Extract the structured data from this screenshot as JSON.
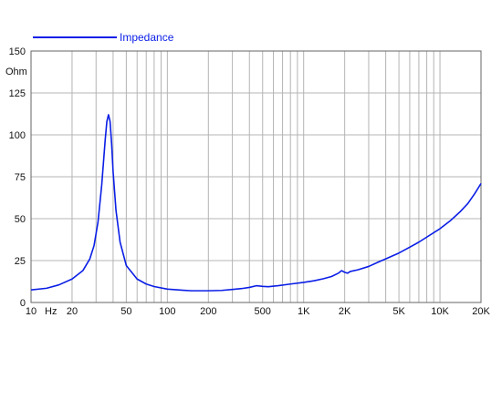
{
  "chart_data": {
    "type": "line",
    "title": "",
    "xlabel": "",
    "ylabel": "Ohm",
    "x_unit": "Hz",
    "x_scale": "log",
    "xlim": [
      10,
      20000
    ],
    "ylim": [
      0,
      150
    ],
    "grid": true,
    "legend_position": "top-left",
    "x_tick_values": [
      10,
      20,
      50,
      100,
      200,
      500,
      1000,
      2000,
      5000,
      10000,
      20000
    ],
    "x_tick_labels": [
      "10",
      "20",
      "50",
      "100",
      "200",
      "500",
      "1K",
      "2K",
      "5K",
      "10K",
      "20K"
    ],
    "y_tick_values": [
      0,
      25,
      50,
      75,
      100,
      125,
      150
    ],
    "y_tick_labels": [
      "0",
      "25",
      "50",
      "75",
      "100",
      "125",
      "150"
    ],
    "series": [
      {
        "name": "Impedance",
        "color": "#0a1ee6",
        "points": [
          [
            10,
            7.5
          ],
          [
            13,
            8.5
          ],
          [
            16,
            10.5
          ],
          [
            20,
            14
          ],
          [
            24,
            19
          ],
          [
            27,
            26
          ],
          [
            29,
            34
          ],
          [
            31,
            48
          ],
          [
            33,
            70
          ],
          [
            35,
            97
          ],
          [
            36,
            108
          ],
          [
            37,
            112
          ],
          [
            38,
            108
          ],
          [
            39,
            95
          ],
          [
            40,
            78
          ],
          [
            42,
            55
          ],
          [
            45,
            36
          ],
          [
            50,
            22
          ],
          [
            60,
            14
          ],
          [
            70,
            11
          ],
          [
            80,
            9.5
          ],
          [
            100,
            8
          ],
          [
            130,
            7.3
          ],
          [
            150,
            7
          ],
          [
            200,
            7
          ],
          [
            250,
            7.2
          ],
          [
            300,
            7.8
          ],
          [
            350,
            8.3
          ],
          [
            400,
            9
          ],
          [
            450,
            10
          ],
          [
            500,
            9.6
          ],
          [
            550,
            9.4
          ],
          [
            650,
            10
          ],
          [
            800,
            11
          ],
          [
            1000,
            12
          ],
          [
            1200,
            13
          ],
          [
            1400,
            14.2
          ],
          [
            1600,
            15.5
          ],
          [
            1800,
            17.5
          ],
          [
            1900,
            19
          ],
          [
            2000,
            18
          ],
          [
            2100,
            17.5
          ],
          [
            2200,
            18.5
          ],
          [
            2500,
            19.5
          ],
          [
            3000,
            21.5
          ],
          [
            3500,
            24
          ],
          [
            4000,
            26
          ],
          [
            5000,
            29.5
          ],
          [
            6000,
            33
          ],
          [
            7000,
            36
          ],
          [
            8000,
            39
          ],
          [
            10000,
            44
          ],
          [
            12000,
            49
          ],
          [
            14000,
            54
          ],
          [
            16000,
            59
          ],
          [
            18000,
            65
          ],
          [
            20000,
            71
          ]
        ]
      }
    ]
  }
}
